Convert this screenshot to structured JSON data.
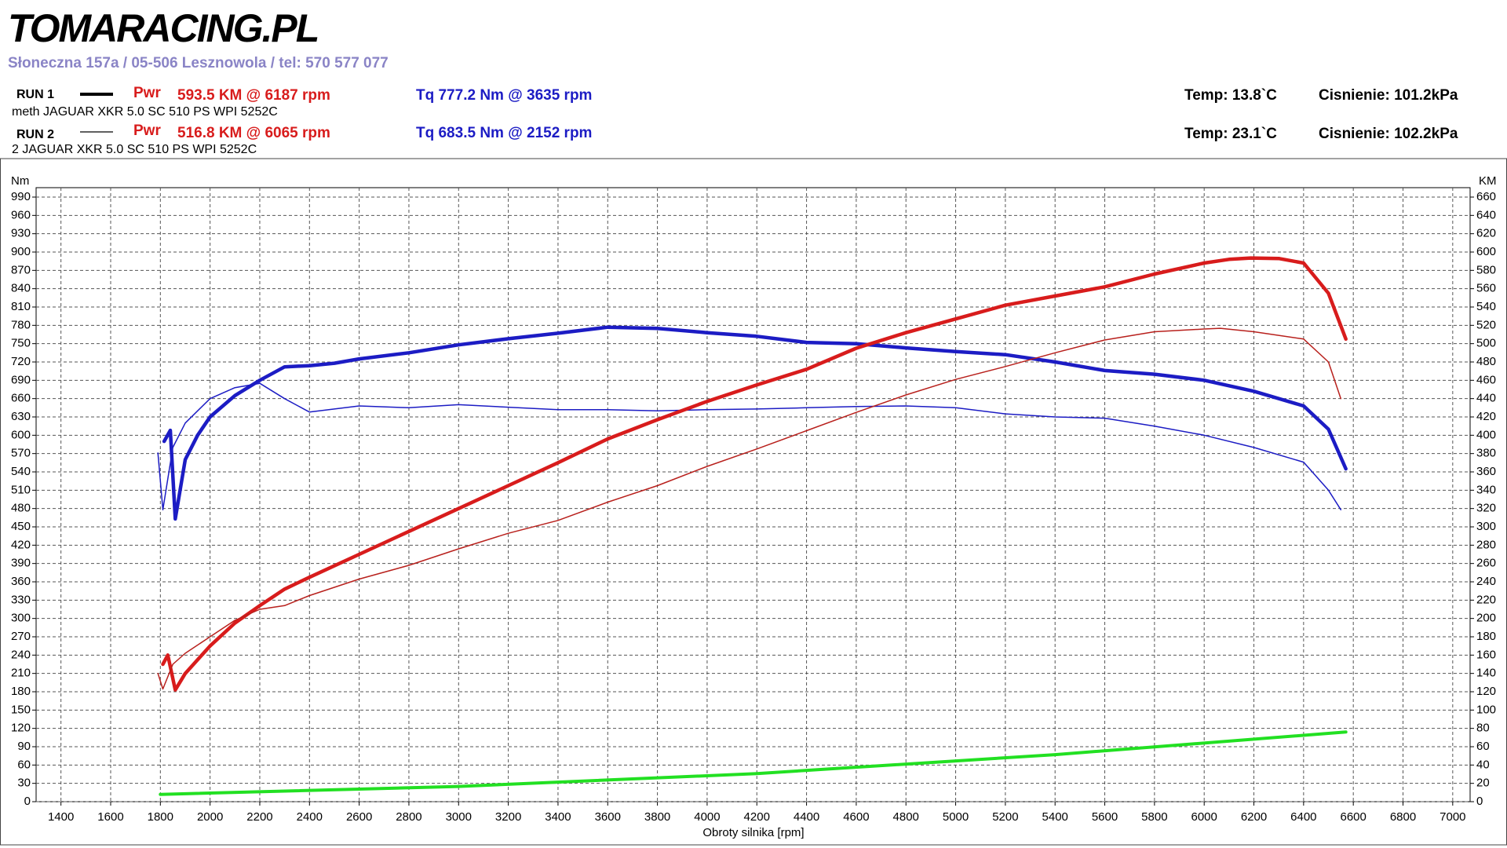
{
  "header": {
    "logo": "TOMARACING.PL",
    "address": "Słoneczna 157a / 05-506 Lesznowola / tel: 570 577 077",
    "runs": [
      {
        "label": "RUN 1",
        "description": "meth JAGUAR XKR 5.0 SC 510 PS WPI 5252C",
        "pwr_label": "Pwr",
        "pwr": "593.5 KM @ 6187 rpm",
        "tq": "Tq 777.2 Nm @ 3635 rpm",
        "temp": "Temp: 13.8`C",
        "pressure": "Cisnienie: 101.2kPa"
      },
      {
        "label": "RUN 2",
        "description": "2 JAGUAR XKR 5.0 SC 510 PS WPI 5252C",
        "pwr_label": "Pwr",
        "pwr": "516.8 KM @ 6065 rpm",
        "tq": "Tq 683.5 Nm @ 2152 rpm",
        "temp": "Temp: 23.1`C",
        "pressure": "Cisnienie: 102.2kPa"
      }
    ]
  },
  "chart_data": {
    "type": "line",
    "ylabel": "Nm",
    "y2label": "KM",
    "xlabel": "Obroty silnika [rpm]",
    "xlim": [
      1300,
      7070
    ],
    "xticks": [
      1400,
      1600,
      1800,
      2000,
      2200,
      2400,
      2600,
      2800,
      3000,
      3200,
      3400,
      3600,
      3800,
      4000,
      4200,
      4400,
      4600,
      4800,
      5000,
      5200,
      5400,
      5600,
      5800,
      6000,
      6200,
      6400,
      6600,
      6800,
      7000
    ],
    "ylim": [
      0,
      990
    ],
    "yticks": [
      0,
      30,
      60,
      90,
      120,
      150,
      180,
      210,
      240,
      270,
      300,
      330,
      360,
      390,
      420,
      450,
      480,
      510,
      540,
      570,
      600,
      630,
      660,
      690,
      720,
      750,
      780,
      810,
      840,
      870,
      900,
      930,
      960,
      990
    ],
    "y2lim": [
      0,
      660
    ],
    "y2ticks": [
      0,
      20,
      40,
      60,
      80,
      100,
      120,
      140,
      160,
      180,
      200,
      220,
      240,
      260,
      280,
      300,
      320,
      340,
      360,
      380,
      400,
      420,
      440,
      460,
      480,
      500,
      520,
      540,
      560,
      580,
      600,
      620,
      640,
      660
    ],
    "grid": true,
    "series": [
      {
        "color": "#1c1cc4",
        "linewidth": 4.5,
        "x": [
          1815,
          1840,
          1860,
          1900,
          1950,
          2000,
          2100,
          2200,
          2300,
          2400,
          2500,
          2600,
          2800,
          3000,
          3200,
          3400,
          3600,
          3800,
          4000,
          4200,
          4400,
          4600,
          4800,
          5000,
          5200,
          5400,
          5600,
          5800,
          6000,
          6200,
          6400,
          6500,
          6570
        ],
        "values": [
          590,
          608,
          463,
          560,
          600,
          630,
          665,
          690,
          712,
          714,
          718,
          725,
          735,
          748,
          758,
          767,
          777,
          775,
          768,
          762,
          752,
          750,
          743,
          737,
          732,
          720,
          706,
          700,
          690,
          672,
          648,
          610,
          545
        ]
      },
      {
        "color": "#1c1cc4",
        "linewidth": 1.5,
        "x": [
          1790,
          1810,
          1850,
          1900,
          2000,
          2100,
          2200,
          2300,
          2400,
          2500,
          2600,
          2800,
          3000,
          3200,
          3400,
          3600,
          3800,
          4000,
          4200,
          4400,
          4600,
          4800,
          5000,
          5200,
          5400,
          5600,
          5800,
          6000,
          6200,
          6400,
          6500,
          6550
        ],
        "values": [
          571,
          478,
          580,
          620,
          660,
          678,
          685,
          660,
          638,
          643,
          648,
          645,
          650,
          646,
          642,
          642,
          640,
          642,
          643,
          645,
          647,
          648,
          645,
          635,
          630,
          628,
          615,
          600,
          580,
          556,
          510,
          478
        ]
      },
      {
        "color": "#d81c1c",
        "linewidth": 4.5,
        "axis": "y2",
        "x": [
          1810,
          1830,
          1860,
          1900,
          2000,
          2100,
          2200,
          2300,
          2400,
          2600,
          2800,
          3000,
          3200,
          3400,
          3600,
          3800,
          4000,
          4200,
          4400,
          4600,
          4800,
          5000,
          5200,
          5400,
          5600,
          5800,
          6000,
          6100,
          6187,
          6300,
          6400,
          6500,
          6570
        ],
        "values": [
          150,
          160,
          122,
          140,
          170,
          195,
          214,
          232,
          245,
          270,
          295,
          320,
          345,
          370,
          396,
          417,
          437,
          455,
          472,
          495,
          512,
          527,
          542,
          552,
          562,
          576,
          588,
          592,
          593.5,
          593,
          588,
          555,
          505
        ]
      },
      {
        "color": "#b8201c",
        "linewidth": 1.5,
        "axis": "y2",
        "x": [
          1790,
          1810,
          1850,
          1900,
          2000,
          2100,
          2200,
          2300,
          2400,
          2600,
          2800,
          3000,
          3200,
          3400,
          3600,
          3800,
          4000,
          4200,
          4400,
          4600,
          4800,
          5000,
          5200,
          5400,
          5600,
          5800,
          6000,
          6065,
          6200,
          6400,
          6500,
          6550
        ],
        "values": [
          140,
          123,
          150,
          162,
          180,
          198,
          210,
          214,
          225,
          243,
          258,
          276,
          293,
          307,
          327,
          345,
          366,
          385,
          405,
          425,
          444,
          461,
          475,
          490,
          504,
          513,
          516,
          516.8,
          513,
          505,
          480,
          440
        ]
      },
      {
        "color": "#22e022",
        "linewidth": 4,
        "x": [
          1800,
          3000,
          4200,
          5400,
          6570
        ],
        "values": [
          12,
          25,
          46,
          77,
          114
        ]
      }
    ]
  }
}
